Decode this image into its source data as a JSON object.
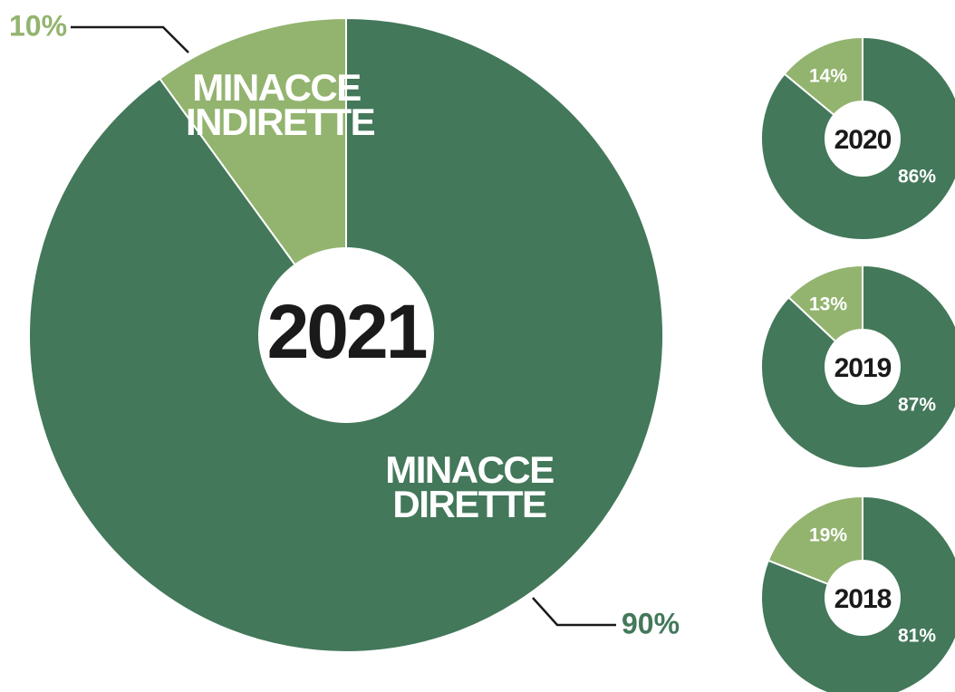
{
  "chart_data": [
    {
      "type": "pie",
      "title": "2021",
      "categories": [
        "MINACCE INDIRETTE",
        "MINACCE DIRETTE"
      ],
      "values": [
        10,
        90
      ],
      "value_labels": [
        "10%",
        "90%"
      ],
      "colors": [
        "#93b46f",
        "#43785a"
      ]
    },
    {
      "type": "pie",
      "title": "2020",
      "values": [
        14,
        86
      ],
      "value_labels": [
        "14%",
        "86%"
      ],
      "colors": [
        "#93b46f",
        "#43785a"
      ]
    },
    {
      "type": "pie",
      "title": "2019",
      "values": [
        13,
        87
      ],
      "value_labels": [
        "13%",
        "87%"
      ],
      "colors": [
        "#93b46f",
        "#43785a"
      ]
    },
    {
      "type": "pie",
      "title": "2018",
      "values": [
        19,
        81
      ],
      "value_labels": [
        "19%",
        "81%"
      ],
      "colors": [
        "#93b46f",
        "#43785a"
      ]
    }
  ]
}
